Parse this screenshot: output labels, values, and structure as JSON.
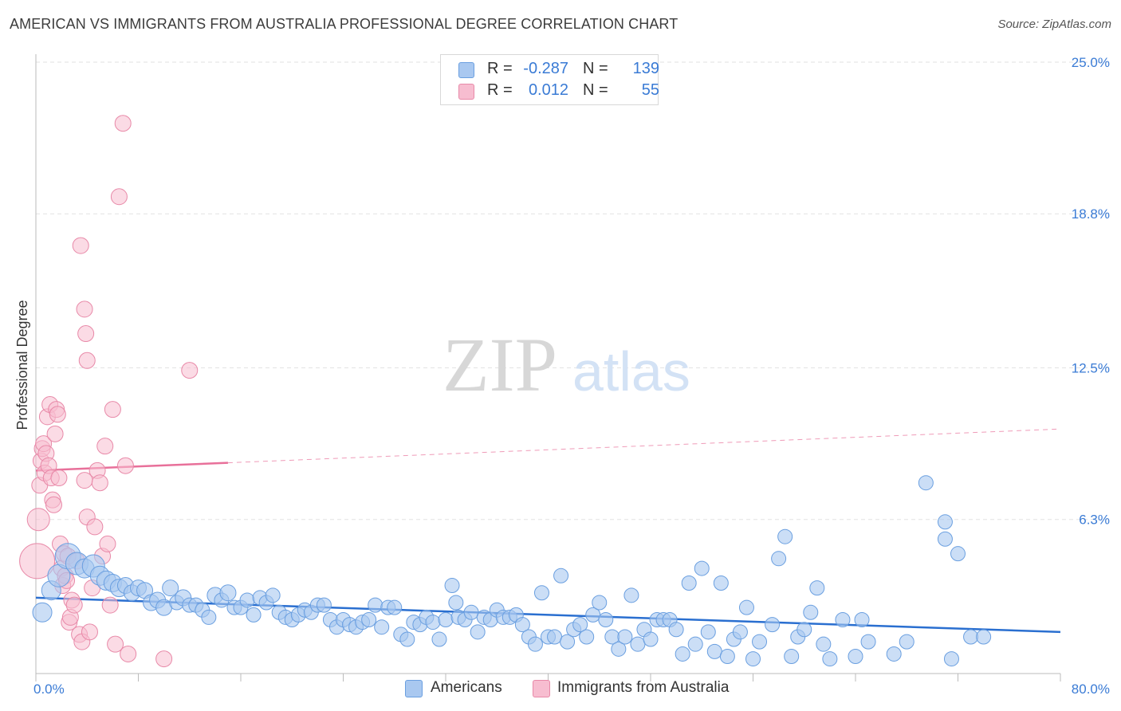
{
  "title": "AMERICAN VS IMMIGRANTS FROM AUSTRALIA PROFESSIONAL DEGREE CORRELATION CHART",
  "source": "Source: ZipAtlas.com",
  "watermark": {
    "part1": "ZIP",
    "part2": "atlas"
  },
  "legend": {
    "r_label": "R =",
    "n_label": "N =",
    "rows": [
      {
        "r": "-0.287",
        "n": "139",
        "color": "#a9c8f0",
        "border": "#6a9fe0"
      },
      {
        "r": "0.012",
        "n": "55",
        "color": "#f7bdd0",
        "border": "#e889a8"
      }
    ]
  },
  "bottom_legend": [
    {
      "label": "Americans",
      "color": "#a9c8f0",
      "border": "#6a9fe0"
    },
    {
      "label": "Immigrants from Australia",
      "color": "#f7bdd0",
      "border": "#e889a8"
    }
  ],
  "chart_data": {
    "type": "scatter",
    "title": "AMERICAN VS IMMIGRANTS FROM AUSTRALIA PROFESSIONAL DEGREE CORRELATION CHART",
    "xlabel": "",
    "ylabel": "Professional Degree",
    "xlim": [
      0,
      80
    ],
    "ylim": [
      0,
      25
    ],
    "x_tick_labels": [
      "0.0%",
      "80.0%"
    ],
    "y_tick_labels": [
      "6.3%",
      "12.5%",
      "18.8%",
      "25.0%"
    ],
    "y_ticks": [
      6.3,
      12.5,
      18.8,
      25.0
    ],
    "legend_position": "top-center",
    "series": [
      {
        "name": "Americans",
        "color": "#a9c8f0",
        "stroke": "#6a9fe0",
        "r": -0.287,
        "n": 139,
        "trend": {
          "x0": 0,
          "y0": 3.1,
          "x1": 80,
          "y1": 1.7,
          "color": "#2a6fd0"
        },
        "points": [
          [
            0.5,
            2.5,
            12
          ],
          [
            1.2,
            3.4,
            12
          ],
          [
            1.8,
            4.0,
            14
          ],
          [
            2.5,
            4.8,
            16
          ],
          [
            3.2,
            4.5,
            14
          ],
          [
            3.8,
            4.3,
            12
          ],
          [
            4.5,
            4.4,
            14
          ],
          [
            5.0,
            4.0,
            12
          ],
          [
            5.5,
            3.8,
            12
          ],
          [
            6.0,
            3.7,
            11
          ],
          [
            6.5,
            3.5,
            11
          ],
          [
            7.0,
            3.6,
            10
          ],
          [
            7.5,
            3.3,
            10
          ],
          [
            8.0,
            3.5,
            10
          ],
          [
            8.5,
            3.4,
            10
          ],
          [
            9.0,
            2.9,
            10
          ],
          [
            9.5,
            3.0,
            10
          ],
          [
            10.0,
            2.7,
            10
          ],
          [
            10.5,
            3.5,
            10
          ],
          [
            11.0,
            2.9,
            9
          ],
          [
            11.5,
            3.1,
            10
          ],
          [
            12.0,
            2.8,
            9
          ],
          [
            12.5,
            2.8,
            9
          ],
          [
            13.0,
            2.6,
            9
          ],
          [
            13.5,
            2.3,
            9
          ],
          [
            14.0,
            3.2,
            10
          ],
          [
            14.5,
            3.0,
            9
          ],
          [
            15.0,
            3.3,
            10
          ],
          [
            15.5,
            2.7,
            9
          ],
          [
            16.0,
            2.7,
            9
          ],
          [
            16.5,
            3.0,
            9
          ],
          [
            17.0,
            2.4,
            9
          ],
          [
            17.5,
            3.1,
            9
          ],
          [
            18.0,
            2.9,
            9
          ],
          [
            18.5,
            3.2,
            9
          ],
          [
            19.0,
            2.5,
            9
          ],
          [
            19.5,
            2.3,
            9
          ],
          [
            20.0,
            2.2,
            9
          ],
          [
            20.5,
            2.4,
            9
          ],
          [
            21.0,
            2.6,
            9
          ],
          [
            21.5,
            2.5,
            9
          ],
          [
            22.0,
            2.8,
            9
          ],
          [
            22.5,
            2.8,
            9
          ],
          [
            23.0,
            2.2,
            9
          ],
          [
            23.5,
            1.9,
            9
          ],
          [
            24.0,
            2.2,
            9
          ],
          [
            24.5,
            2.0,
            9
          ],
          [
            25.0,
            1.9,
            9
          ],
          [
            25.5,
            2.1,
            9
          ],
          [
            26.0,
            2.2,
            9
          ],
          [
            26.5,
            2.8,
            9
          ],
          [
            27.0,
            1.9,
            9
          ],
          [
            27.5,
            2.7,
            9
          ],
          [
            28.0,
            2.7,
            9
          ],
          [
            28.5,
            1.6,
            9
          ],
          [
            29.0,
            1.4,
            9
          ],
          [
            29.5,
            2.1,
            9
          ],
          [
            30.0,
            2.0,
            9
          ],
          [
            30.5,
            2.3,
            9
          ],
          [
            31.0,
            2.1,
            9
          ],
          [
            31.5,
            1.4,
            9
          ],
          [
            32.0,
            2.2,
            9
          ],
          [
            32.5,
            3.6,
            9
          ],
          [
            32.8,
            2.9,
            9
          ],
          [
            33.0,
            2.3,
            9
          ],
          [
            33.5,
            2.2,
            9
          ],
          [
            34.0,
            2.5,
            9
          ],
          [
            34.5,
            1.7,
            9
          ],
          [
            35.0,
            2.3,
            9
          ],
          [
            35.5,
            2.2,
            9
          ],
          [
            36.0,
            2.6,
            9
          ],
          [
            36.5,
            2.3,
            9
          ],
          [
            37.0,
            2.3,
            9
          ],
          [
            37.5,
            2.4,
            9
          ],
          [
            38.0,
            2.0,
            9
          ],
          [
            38.5,
            1.5,
            9
          ],
          [
            39.0,
            1.2,
            9
          ],
          [
            39.5,
            3.3,
            9
          ],
          [
            40.0,
            1.5,
            9
          ],
          [
            40.5,
            1.5,
            9
          ],
          [
            41.0,
            4.0,
            9
          ],
          [
            41.5,
            1.3,
            9
          ],
          [
            42.0,
            1.8,
            9
          ],
          [
            42.5,
            2.0,
            9
          ],
          [
            43.0,
            1.5,
            9
          ],
          [
            43.5,
            2.4,
            9
          ],
          [
            44.0,
            2.9,
            9
          ],
          [
            44.5,
            2.2,
            9
          ],
          [
            45.0,
            1.5,
            9
          ],
          [
            45.5,
            1.0,
            9
          ],
          [
            46.0,
            1.5,
            9
          ],
          [
            46.5,
            3.2,
            9
          ],
          [
            47.0,
            1.2,
            9
          ],
          [
            47.5,
            1.8,
            9
          ],
          [
            48.0,
            1.4,
            9
          ],
          [
            48.5,
            2.2,
            9
          ],
          [
            49.0,
            2.2,
            9
          ],
          [
            49.5,
            2.2,
            9
          ],
          [
            50.0,
            1.8,
            9
          ],
          [
            50.5,
            0.8,
            9
          ],
          [
            51.0,
            3.7,
            9
          ],
          [
            51.5,
            1.2,
            9
          ],
          [
            52.0,
            4.3,
            9
          ],
          [
            52.5,
            1.7,
            9
          ],
          [
            53.0,
            0.9,
            9
          ],
          [
            53.5,
            3.7,
            9
          ],
          [
            54.0,
            0.7,
            9
          ],
          [
            54.5,
            1.4,
            9
          ],
          [
            55.0,
            1.7,
            9
          ],
          [
            55.5,
            2.7,
            9
          ],
          [
            56.0,
            0.6,
            9
          ],
          [
            56.5,
            1.3,
            9
          ],
          [
            57.5,
            2.0,
            9
          ],
          [
            58.0,
            4.7,
            9
          ],
          [
            58.5,
            5.6,
            9
          ],
          [
            59.0,
            0.7,
            9
          ],
          [
            59.5,
            1.5,
            9
          ],
          [
            60.0,
            1.8,
            9
          ],
          [
            60.5,
            2.5,
            9
          ],
          [
            61.0,
            3.5,
            9
          ],
          [
            61.5,
            1.2,
            9
          ],
          [
            62.0,
            0.6,
            9
          ],
          [
            63.0,
            2.2,
            9
          ],
          [
            64.0,
            0.7,
            9
          ],
          [
            64.5,
            2.2,
            9
          ],
          [
            65.0,
            1.3,
            9
          ],
          [
            67.0,
            0.8,
            9
          ],
          [
            68.0,
            1.3,
            9
          ],
          [
            69.5,
            7.8,
            9
          ],
          [
            71.0,
            6.2,
            9
          ],
          [
            71.5,
            0.6,
            9
          ],
          [
            72.0,
            4.9,
            9
          ],
          [
            73.0,
            1.5,
            9
          ],
          [
            74.0,
            1.5,
            9
          ],
          [
            71.0,
            5.5,
            9
          ]
        ]
      },
      {
        "name": "Immigrants from Australia",
        "color": "#f7bdd0",
        "stroke": "#e889a8",
        "r": 0.012,
        "n": 55,
        "trend": {
          "x0": 0,
          "y0": 8.3,
          "x1": 80,
          "y1": 10.0,
          "solid_until": 15,
          "color": "#e8709a"
        },
        "points": [
          [
            0.1,
            4.6,
            22
          ],
          [
            0.2,
            6.3,
            14
          ],
          [
            0.3,
            7.7,
            10
          ],
          [
            0.4,
            8.7,
            10
          ],
          [
            0.5,
            9.2,
            10
          ],
          [
            0.6,
            9.4,
            10
          ],
          [
            0.7,
            8.2,
            10
          ],
          [
            0.8,
            9.0,
            10
          ],
          [
            0.9,
            10.5,
            10
          ],
          [
            1.0,
            8.5,
            10
          ],
          [
            1.1,
            11.0,
            10
          ],
          [
            1.2,
            8.0,
            10
          ],
          [
            1.3,
            7.1,
            10
          ],
          [
            1.4,
            6.9,
            10
          ],
          [
            1.5,
            9.8,
            10
          ],
          [
            1.6,
            10.8,
            10
          ],
          [
            1.7,
            10.6,
            10
          ],
          [
            1.8,
            8.0,
            10
          ],
          [
            1.9,
            5.3,
            10
          ],
          [
            2.0,
            4.3,
            10
          ],
          [
            2.1,
            3.6,
            10
          ],
          [
            2.2,
            4.9,
            10
          ],
          [
            2.3,
            4.0,
            10
          ],
          [
            2.4,
            3.8,
            10
          ],
          [
            2.5,
            4.8,
            10
          ],
          [
            2.6,
            2.1,
            10
          ],
          [
            2.7,
            2.3,
            10
          ],
          [
            2.8,
            3.0,
            10
          ],
          [
            3.0,
            2.8,
            10
          ],
          [
            3.2,
            4.6,
            10
          ],
          [
            3.4,
            1.6,
            10
          ],
          [
            3.6,
            1.3,
            10
          ],
          [
            3.8,
            7.9,
            10
          ],
          [
            4.0,
            6.4,
            10
          ],
          [
            4.2,
            1.7,
            10
          ],
          [
            4.4,
            3.5,
            10
          ],
          [
            4.6,
            6.0,
            10
          ],
          [
            4.8,
            8.3,
            10
          ],
          [
            5.0,
            7.8,
            10
          ],
          [
            5.2,
            4.8,
            10
          ],
          [
            5.4,
            9.3,
            10
          ],
          [
            5.6,
            5.3,
            10
          ],
          [
            5.8,
            2.8,
            10
          ],
          [
            6.0,
            10.8,
            10
          ],
          [
            6.2,
            1.2,
            10
          ],
          [
            6.5,
            19.5,
            10
          ],
          [
            6.8,
            22.5,
            10
          ],
          [
            7.0,
            8.5,
            10
          ],
          [
            7.2,
            0.8,
            10
          ],
          [
            3.5,
            17.5,
            10
          ],
          [
            3.8,
            14.9,
            10
          ],
          [
            4.0,
            12.8,
            10
          ],
          [
            3.9,
            13.9,
            10
          ],
          [
            12.0,
            12.4,
            10
          ],
          [
            10.0,
            0.6,
            10
          ]
        ]
      }
    ]
  }
}
